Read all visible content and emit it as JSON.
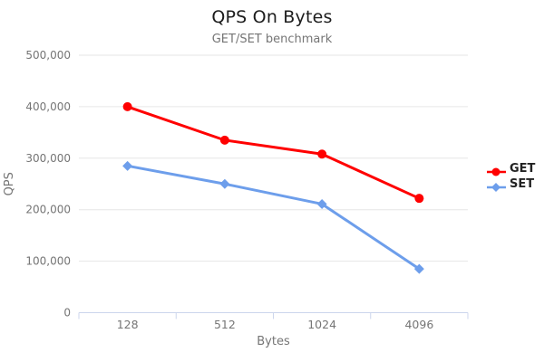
{
  "chart_data": {
    "type": "line",
    "title": "QPS On Bytes",
    "subtitle": "GET/SET benchmark",
    "xlabel": "Bytes",
    "ylabel": "QPS",
    "categories": [
      "128",
      "512",
      "1024",
      "4096"
    ],
    "series": [
      {
        "name": "GET",
        "color": "#ff0000",
        "marker": "circle",
        "values": [
          400000,
          335000,
          308000,
          222000
        ]
      },
      {
        "name": "SET",
        "color": "#6d9eeb",
        "marker": "diamond",
        "values": [
          285000,
          250000,
          211000,
          85000
        ]
      }
    ],
    "ylim": [
      0,
      500000
    ],
    "ytick_step": 100000,
    "ytick_labels": [
      "0",
      "100,000",
      "200,000",
      "300,000",
      "400,000",
      "500,000"
    ],
    "grid": true,
    "legend_position": "right",
    "colors": {
      "grid": "#e6e6e6",
      "axis": "#ccd6ec",
      "tick_label": "#757575",
      "axis_title": "#757575",
      "title": "#1c1c1c",
      "subtitle": "#757575",
      "legend_text": "#222222"
    }
  }
}
